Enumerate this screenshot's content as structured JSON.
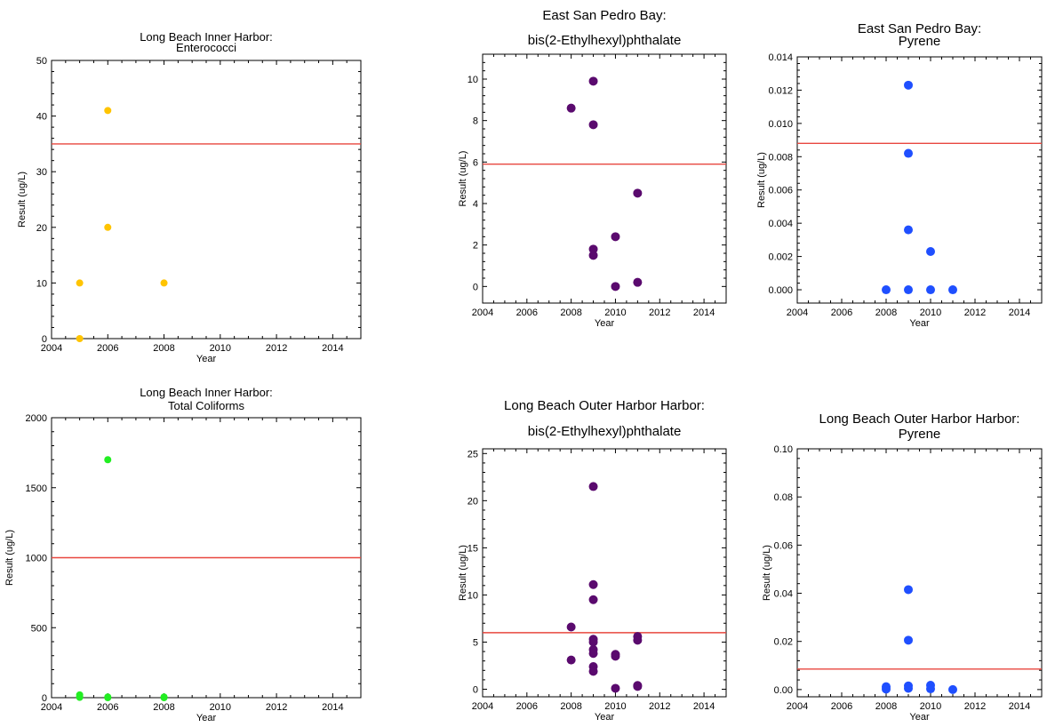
{
  "chart_data": [
    {
      "type": "scatter",
      "title": [
        "Long Beach Inner Harbor:",
        "Enterococci"
      ],
      "xlabel": "Year",
      "ylabel": "Result (ug/L)",
      "xlim": [
        2004,
        2015
      ],
      "ylim": [
        0,
        50
      ],
      "xticks": [
        2004,
        2006,
        2008,
        2010,
        2012,
        2014
      ],
      "yticks": [
        0,
        10,
        20,
        30,
        40,
        50
      ],
      "ytick_labels": [
        "0",
        "10",
        "20",
        "30",
        "40",
        "50"
      ],
      "color": "#ffc400",
      "threshold": 35,
      "threshold_color": "#e8473f",
      "points": [
        [
          2005,
          10
        ],
        [
          2005,
          0
        ],
        [
          2006,
          41
        ],
        [
          2006,
          20
        ],
        [
          2008,
          10
        ]
      ]
    },
    {
      "type": "scatter",
      "title": [
        "East San Pedro Bay:",
        "bis(2-Ethylhexyl)phthalate"
      ],
      "xlabel": "Year",
      "ylabel": "Result (ug/L)",
      "xlim": [
        2004,
        2015
      ],
      "ylim": [
        -0.8,
        11.2
      ],
      "xticks": [
        2004,
        2006,
        2008,
        2010,
        2012,
        2014
      ],
      "yticks": [
        0,
        2,
        4,
        6,
        8,
        10
      ],
      "ytick_labels": [
        "0",
        "2",
        "4",
        "6",
        "8",
        "10"
      ],
      "color": "#5a0a6e",
      "threshold": 5.9,
      "threshold_color": "#e8473f",
      "points": [
        [
          2008,
          8.6
        ],
        [
          2009,
          9.9
        ],
        [
          2009,
          7.8
        ],
        [
          2009,
          1.8
        ],
        [
          2009,
          1.5
        ],
        [
          2010,
          2.4
        ],
        [
          2010,
          0
        ],
        [
          2011,
          4.5
        ],
        [
          2011,
          0.2
        ]
      ]
    },
    {
      "type": "scatter",
      "title": [
        "East San Pedro Bay:",
        "Pyrene"
      ],
      "xlabel": "Year",
      "ylabel": "Result (ug/L)",
      "xlim": [
        2004,
        2015
      ],
      "ylim": [
        -0.0008,
        0.014
      ],
      "xticks": [
        2004,
        2006,
        2008,
        2010,
        2012,
        2014
      ],
      "yticks": [
        0,
        0.002,
        0.004,
        0.006,
        0.008,
        0.01,
        0.012,
        0.014
      ],
      "ytick_labels": [
        "0.000",
        "0.002",
        "0.004",
        "0.006",
        "0.008",
        "0.010",
        "0.012",
        "0.014"
      ],
      "color": "#1f4fff",
      "threshold": 0.0088,
      "threshold_color": "#e8473f",
      "points": [
        [
          2008,
          0
        ],
        [
          2009,
          0.0123
        ],
        [
          2009,
          0.0082
        ],
        [
          2009,
          0.0036
        ],
        [
          2009,
          0
        ],
        [
          2010,
          0.0023
        ],
        [
          2010,
          0
        ],
        [
          2011,
          0
        ]
      ]
    },
    {
      "type": "scatter",
      "title": [
        "Long Beach Inner Harbor:",
        "Total Coliforms"
      ],
      "xlabel": "Year",
      "ylabel": "Result (ug/L)",
      "xlim": [
        2004,
        2015
      ],
      "ylim": [
        0,
        2000
      ],
      "xticks": [
        2004,
        2006,
        2008,
        2010,
        2012,
        2014
      ],
      "yticks": [
        0,
        500,
        1000,
        1500,
        2000
      ],
      "ytick_labels": [
        "0",
        "500",
        "1000",
        "1500",
        "2000"
      ],
      "color": "#22ee22",
      "threshold": 1000,
      "threshold_color": "#e8473f",
      "points": [
        [
          2006,
          1700
        ],
        [
          2005,
          20
        ],
        [
          2005,
          8
        ],
        [
          2005,
          2
        ],
        [
          2006,
          5
        ],
        [
          2006,
          0
        ],
        [
          2008,
          5
        ],
        [
          2008,
          0
        ]
      ]
    },
    {
      "type": "scatter",
      "title": [
        "Long Beach Outer Harbor Harbor:",
        "bis(2-Ethylhexyl)phthalate"
      ],
      "xlabel": "Year",
      "ylabel": "Result (ug/L)",
      "xlim": [
        2004,
        2015
      ],
      "ylim": [
        -0.8,
        25.5
      ],
      "xticks": [
        2004,
        2006,
        2008,
        2010,
        2012,
        2014
      ],
      "yticks": [
        0,
        5,
        10,
        15,
        20,
        25
      ],
      "ytick_labels": [
        "0",
        "5",
        "10",
        "15",
        "20",
        "25"
      ],
      "color": "#5a0a6e",
      "threshold": 6.0,
      "threshold_color": "#e8473f",
      "points": [
        [
          2008,
          6.6
        ],
        [
          2008,
          3.1
        ],
        [
          2009,
          21.5
        ],
        [
          2009,
          11.1
        ],
        [
          2009,
          9.5
        ],
        [
          2009,
          5.3
        ],
        [
          2009,
          5.0
        ],
        [
          2009,
          4.2
        ],
        [
          2009,
          3.8
        ],
        [
          2009,
          2.4
        ],
        [
          2009,
          1.9
        ],
        [
          2010,
          3.7
        ],
        [
          2010,
          3.5
        ],
        [
          2010,
          0.1
        ],
        [
          2011,
          5.6
        ],
        [
          2011,
          5.2
        ],
        [
          2011,
          0.4
        ],
        [
          2011,
          0.3
        ]
      ]
    },
    {
      "type": "scatter",
      "title": [
        "Long Beach Outer Harbor Harbor:",
        "Pyrene"
      ],
      "xlabel": "Year",
      "ylabel": "Result (ug/L)",
      "xlim": [
        2004,
        2015
      ],
      "ylim": [
        -0.003,
        0.1
      ],
      "xticks": [
        2004,
        2006,
        2008,
        2010,
        2012,
        2014
      ],
      "yticks": [
        0,
        0.02,
        0.04,
        0.06,
        0.08,
        0.1
      ],
      "ytick_labels": [
        "0.00",
        "0.02",
        "0.04",
        "0.06",
        "0.08",
        "0.10"
      ],
      "color": "#1f4fff",
      "threshold": 0.0085,
      "threshold_color": "#e8473f",
      "points": [
        [
          2008,
          0.0012
        ],
        [
          2008,
          0.0002
        ],
        [
          2009,
          0.0415
        ],
        [
          2009,
          0.0205
        ],
        [
          2009,
          0.0015
        ],
        [
          2009,
          0.0005
        ],
        [
          2010,
          0.0018
        ],
        [
          2010,
          0.0003
        ],
        [
          2011,
          0.0
        ]
      ]
    }
  ]
}
